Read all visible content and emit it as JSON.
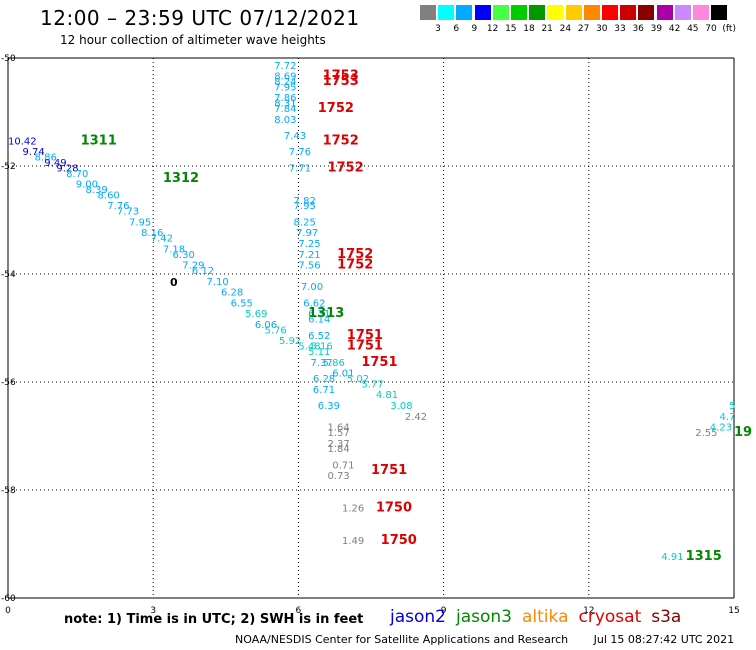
{
  "title": "12:00 – 23:59 UTC 07/12/2021",
  "subtitle": "12 hour collection of altimeter wave heights",
  "color_scale": {
    "labels": [
      "3",
      "6",
      "9",
      "12",
      "15",
      "18",
      "21",
      "24",
      "27",
      "30",
      "33",
      "36",
      "39",
      "42",
      "45",
      "70",
      "(ft)"
    ],
    "colors": [
      "#808080",
      "#00ffff",
      "#00aaff",
      "#0000ff",
      "#44ff44",
      "#00cc00",
      "#009900",
      "#ffff00",
      "#ffcc00",
      "#ff8800",
      "#ff0000",
      "#cc0000",
      "#880000",
      "#aa00aa",
      "#cc88ff",
      "#ff88dd",
      "#000000"
    ]
  },
  "map": {
    "x_ticks": [
      "0",
      "3",
      "6",
      "9",
      "12",
      "15"
    ],
    "y_ticks": [
      "-50",
      "-52",
      "-54",
      "-56",
      "-58",
      "-60"
    ],
    "zero_marker": "0"
  },
  "time_labels": [
    {
      "text": "1311",
      "lon": 1.5,
      "lat": -51.6,
      "color": "#008800"
    },
    {
      "text": "1312",
      "lon": 3.2,
      "lat": -52.3,
      "color": "#008800"
    },
    {
      "text": "1313",
      "lon": 6.2,
      "lat": -54.8,
      "color": "#008800"
    },
    {
      "text": "1315",
      "lon": 14.0,
      "lat": -59.3,
      "color": "#008800"
    },
    {
      "text": "19",
      "lon": 15.0,
      "lat": -57.0,
      "color": "#008800"
    },
    {
      "text": "1753",
      "lon": 6.5,
      "lat": -50.4,
      "color": "#dd0000"
    },
    {
      "text": "1753",
      "lon": 6.5,
      "lat": -50.5,
      "color": "#dd0000"
    },
    {
      "text": "1752",
      "lon": 6.4,
      "lat": -51.0,
      "color": "#dd0000"
    },
    {
      "text": "1752",
      "lon": 6.5,
      "lat": -51.6,
      "color": "#dd0000"
    },
    {
      "text": "1752",
      "lon": 6.6,
      "lat": -52.1,
      "color": "#dd0000"
    },
    {
      "text": "1752",
      "lon": 6.8,
      "lat": -53.7,
      "color": "#dd0000"
    },
    {
      "text": "1752",
      "lon": 6.8,
      "lat": -53.9,
      "color": "#dd0000"
    },
    {
      "text": "1751",
      "lon": 7.0,
      "lat": -55.2,
      "color": "#dd0000"
    },
    {
      "text": "1751",
      "lon": 7.0,
      "lat": -55.4,
      "color": "#dd0000"
    },
    {
      "text": "1751",
      "lon": 7.3,
      "lat": -55.7,
      "color": "#dd0000"
    },
    {
      "text": "1751",
      "lon": 7.5,
      "lat": -57.7,
      "color": "#dd0000"
    },
    {
      "text": "1750",
      "lon": 7.6,
      "lat": -58.4,
      "color": "#dd0000"
    },
    {
      "text": "1750",
      "lon": 7.7,
      "lat": -59.0,
      "color": "#dd0000"
    }
  ],
  "wave_heights": [
    {
      "v": "10.42",
      "lon": 0.0,
      "lat": -51.6,
      "c": "#0000dd"
    },
    {
      "v": "9.74",
      "lon": 0.3,
      "lat": -51.8,
      "c": "#0000dd"
    },
    {
      "v": "8.86",
      "lon": 0.55,
      "lat": -51.9,
      "c": "#00aaff"
    },
    {
      "v": "9.49",
      "lon": 0.75,
      "lat": -52.0,
      "c": "#0000dd"
    },
    {
      "v": "9.28",
      "lon": 1.0,
      "lat": -52.1,
      "c": "#0000dd"
    },
    {
      "v": "8.70",
      "lon": 1.2,
      "lat": -52.2,
      "c": "#00aaff"
    },
    {
      "v": "9.00",
      "lon": 1.4,
      "lat": -52.4,
      "c": "#00aaff"
    },
    {
      "v": "8.39",
      "lon": 1.6,
      "lat": -52.5,
      "c": "#00aaff"
    },
    {
      "v": "8.60",
      "lon": 1.85,
      "lat": -52.6,
      "c": "#00aaff"
    },
    {
      "v": "7.76",
      "lon": 2.05,
      "lat": -52.8,
      "c": "#00aaff"
    },
    {
      "v": "7.73",
      "lon": 2.25,
      "lat": -52.9,
      "c": "#00aaff"
    },
    {
      "v": "7.95",
      "lon": 2.5,
      "lat": -53.1,
      "c": "#00aaff"
    },
    {
      "v": "8.16",
      "lon": 2.75,
      "lat": -53.3,
      "c": "#00aaff"
    },
    {
      "v": "7.42",
      "lon": 2.95,
      "lat": -53.4,
      "c": "#00aaff"
    },
    {
      "v": "7.18",
      "lon": 3.2,
      "lat": -53.6,
      "c": "#00aaff"
    },
    {
      "v": "6.30",
      "lon": 3.4,
      "lat": -53.7,
      "c": "#00aaff"
    },
    {
      "v": "7.29",
      "lon": 3.6,
      "lat": -53.9,
      "c": "#00aaff"
    },
    {
      "v": "6.12",
      "lon": 3.8,
      "lat": -54.0,
      "c": "#00aaff"
    },
    {
      "v": "7.10",
      "lon": 4.1,
      "lat": -54.2,
      "c": "#00aaff"
    },
    {
      "v": "6.28",
      "lon": 4.4,
      "lat": -54.4,
      "c": "#00aaff"
    },
    {
      "v": "6.55",
      "lon": 4.6,
      "lat": -54.6,
      "c": "#00aaff"
    },
    {
      "v": "5.69",
      "lon": 4.9,
      "lat": -54.8,
      "c": "#00cccc"
    },
    {
      "v": "6.06",
      "lon": 5.1,
      "lat": -55.0,
      "c": "#00aaff"
    },
    {
      "v": "5.76",
      "lon": 5.3,
      "lat": -55.1,
      "c": "#00cccc"
    },
    {
      "v": "5.92",
      "lon": 5.6,
      "lat": -55.3,
      "c": "#00cccc"
    },
    {
      "v": "7.72",
      "lon": 5.5,
      "lat": -50.2,
      "c": "#00aaff"
    },
    {
      "v": "8.69",
      "lon": 5.5,
      "lat": -50.4,
      "c": "#00aaff"
    },
    {
      "v": "8.24",
      "lon": 5.5,
      "lat": -50.5,
      "c": "#00aaff"
    },
    {
      "v": "7.95",
      "lon": 5.5,
      "lat": -50.6,
      "c": "#00aaff"
    },
    {
      "v": "7.86",
      "lon": 5.5,
      "lat": -50.8,
      "c": "#00aaff"
    },
    {
      "v": "8.31",
      "lon": 5.5,
      "lat": -50.9,
      "c": "#00aaff"
    },
    {
      "v": "7.84",
      "lon": 5.5,
      "lat": -51.0,
      "c": "#00aaff"
    },
    {
      "v": "8.03",
      "lon": 5.5,
      "lat": -51.2,
      "c": "#00aaff"
    },
    {
      "v": "7.43",
      "lon": 5.7,
      "lat": -51.5,
      "c": "#00aaff"
    },
    {
      "v": "7.76",
      "lon": 5.8,
      "lat": -51.8,
      "c": "#00aaff"
    },
    {
      "v": "7.71",
      "lon": 5.8,
      "lat": -52.1,
      "c": "#00aaff"
    },
    {
      "v": "7.82",
      "lon": 5.9,
      "lat": -52.7,
      "c": "#00aaff"
    },
    {
      "v": "7.95",
      "lon": 5.9,
      "lat": -52.8,
      "c": "#00aaff"
    },
    {
      "v": "8.25",
      "lon": 5.9,
      "lat": -53.1,
      "c": "#00aaff"
    },
    {
      "v": "7.97",
      "lon": 5.95,
      "lat": -53.3,
      "c": "#00aaff"
    },
    {
      "v": "7.25",
      "lon": 6.0,
      "lat": -53.5,
      "c": "#00aaff"
    },
    {
      "v": "7.21",
      "lon": 6.0,
      "lat": -53.7,
      "c": "#00aaff"
    },
    {
      "v": "7.56",
      "lon": 6.0,
      "lat": -53.9,
      "c": "#00aaff"
    },
    {
      "v": "7.00",
      "lon": 6.05,
      "lat": -54.3,
      "c": "#00aaff"
    },
    {
      "v": "6.62",
      "lon": 6.1,
      "lat": -54.6,
      "c": "#00aaff"
    },
    {
      "v": "6.31",
      "lon": 6.2,
      "lat": -54.8,
      "c": "#00aaff"
    },
    {
      "v": "6.14",
      "lon": 6.2,
      "lat": -54.9,
      "c": "#00aaff"
    },
    {
      "v": "6.52",
      "lon": 6.2,
      "lat": -55.2,
      "c": "#00aaff"
    },
    {
      "v": "5.16",
      "lon": 6.25,
      "lat": -55.4,
      "c": "#00cccc"
    },
    {
      "v": "5.48",
      "lon": 6.0,
      "lat": -55.4,
      "c": "#00cccc"
    },
    {
      "v": "5.11",
      "lon": 6.2,
      "lat": -55.5,
      "c": "#00cccc"
    },
    {
      "v": "5.86",
      "lon": 6.5,
      "lat": -55.7,
      "c": "#00cccc"
    },
    {
      "v": "7.37",
      "lon": 6.25,
      "lat": -55.7,
      "c": "#00aaff"
    },
    {
      "v": "6.01",
      "lon": 6.7,
      "lat": -55.9,
      "c": "#00aaff"
    },
    {
      "v": "6.28",
      "lon": 6.3,
      "lat": -56.0,
      "c": "#00aaff"
    },
    {
      "v": "5.02",
      "lon": 7.0,
      "lat": -56.0,
      "c": "#00cccc"
    },
    {
      "v": "6.71",
      "lon": 6.3,
      "lat": -56.2,
      "c": "#00aaff"
    },
    {
      "v": "5.77",
      "lon": 7.3,
      "lat": -56.1,
      "c": "#00cccc"
    },
    {
      "v": "4.81",
      "lon": 7.6,
      "lat": -56.3,
      "c": "#00cccc"
    },
    {
      "v": "3.08",
      "lon": 7.9,
      "lat": -56.5,
      "c": "#00cccc"
    },
    {
      "v": "6.39",
      "lon": 6.4,
      "lat": -56.5,
      "c": "#00aaff"
    },
    {
      "v": "2.42",
      "lon": 8.2,
      "lat": -56.7,
      "c": "#808080"
    },
    {
      "v": "1.64",
      "lon": 6.6,
      "lat": -56.9,
      "c": "#808080"
    },
    {
      "v": "1.57",
      "lon": 6.6,
      "lat": -57.0,
      "c": "#808080"
    },
    {
      "v": "2.37",
      "lon": 6.6,
      "lat": -57.2,
      "c": "#808080"
    },
    {
      "v": "1.84",
      "lon": 6.6,
      "lat": -57.3,
      "c": "#808080"
    },
    {
      "v": "0.71",
      "lon": 6.7,
      "lat": -57.6,
      "c": "#808080"
    },
    {
      "v": "0.73",
      "lon": 6.6,
      "lat": -57.8,
      "c": "#808080"
    },
    {
      "v": "1.26",
      "lon": 6.9,
      "lat": -58.4,
      "c": "#808080"
    },
    {
      "v": "1.49",
      "lon": 6.9,
      "lat": -59.0,
      "c": "#808080"
    },
    {
      "v": "4.91",
      "lon": 13.5,
      "lat": -59.3,
      "c": "#00cccc"
    },
    {
      "v": "2.55",
      "lon": 14.2,
      "lat": -57.0,
      "c": "#808080"
    },
    {
      "v": "4.23",
      "lon": 14.5,
      "lat": -56.9,
      "c": "#00cccc"
    },
    {
      "v": "4.7",
      "lon": 14.7,
      "lat": -56.7,
      "c": "#00cccc"
    },
    {
      "v": "5",
      "lon": 14.9,
      "lat": -56.5,
      "c": "#00cccc"
    }
  ],
  "note": "note:  1) Time is in UTC;  2) SWH is in feet",
  "satellites": [
    {
      "name": "jason2",
      "color": "#0000dd"
    },
    {
      "name": "jason3",
      "color": "#008800"
    },
    {
      "name": "altika",
      "color": "#ff8800"
    },
    {
      "name": "cryosat",
      "color": "#dd0000"
    },
    {
      "name": "s3a",
      "color": "#880000"
    }
  ],
  "footer": {
    "org": "NOAA/NESDIS Center for Satellite Applications and Research",
    "timestamp": "Jul 15 08:27:42 UTC 2021"
  }
}
